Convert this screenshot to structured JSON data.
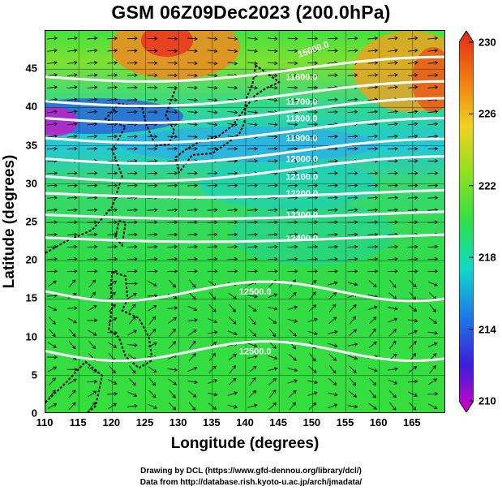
{
  "title": "GSM 06Z09Dec2023 (200.0hPa)",
  "xlabel": "Longitude (degrees)",
  "ylabel": "Latitude  (degrees)",
  "credits": {
    "line1": "Drawing by DCL (https://www.gfd-dennou.org/library/dcl/)",
    "line2": "Data from http://database.rish.kyoto-u.ac.jp/arch/jmadata/"
  },
  "map": {
    "lon_range": [
      110,
      170
    ],
    "lat_range": [
      0,
      50
    ],
    "lon_ticks": [
      110,
      115,
      120,
      125,
      130,
      135,
      140,
      145,
      150,
      155,
      160,
      165
    ],
    "lat_ticks": [
      0,
      5,
      10,
      15,
      20,
      25,
      30,
      35,
      40,
      45
    ],
    "grid": true,
    "shading_variable_units_range": [
      210,
      230
    ],
    "contours": [
      {
        "label": "11600.0",
        "lat": 44.0
      },
      {
        "label": "11700.0",
        "lat": 40.8
      },
      {
        "label": "11800.0",
        "lat": 38.6
      },
      {
        "label": "11900.0",
        "lat": 36.0
      },
      {
        "label": "12000.0",
        "lat": 33.3
      },
      {
        "label": "12100.0",
        "lat": 31.0
      },
      {
        "label": "12200.0",
        "lat": 28.8
      },
      {
        "label": "12300.0",
        "lat": 26.0
      },
      {
        "label": "12400.0",
        "lat": 23.0
      },
      {
        "label": "12500.0",
        "lat": 16.0
      },
      {
        "label": "12500.0",
        "lat": 8.2
      }
    ],
    "contour_label_12600": "15600.0"
  },
  "colorbar": {
    "min": 210,
    "max": 230,
    "ticks": [
      210,
      214,
      218,
      222,
      226,
      230
    ],
    "colors": [
      "#d600c8",
      "#3a1fd8",
      "#1e78e8",
      "#10d8c8",
      "#2ee04a",
      "#8ee020",
      "#f0d020",
      "#f07a10",
      "#e02a18"
    ]
  }
}
